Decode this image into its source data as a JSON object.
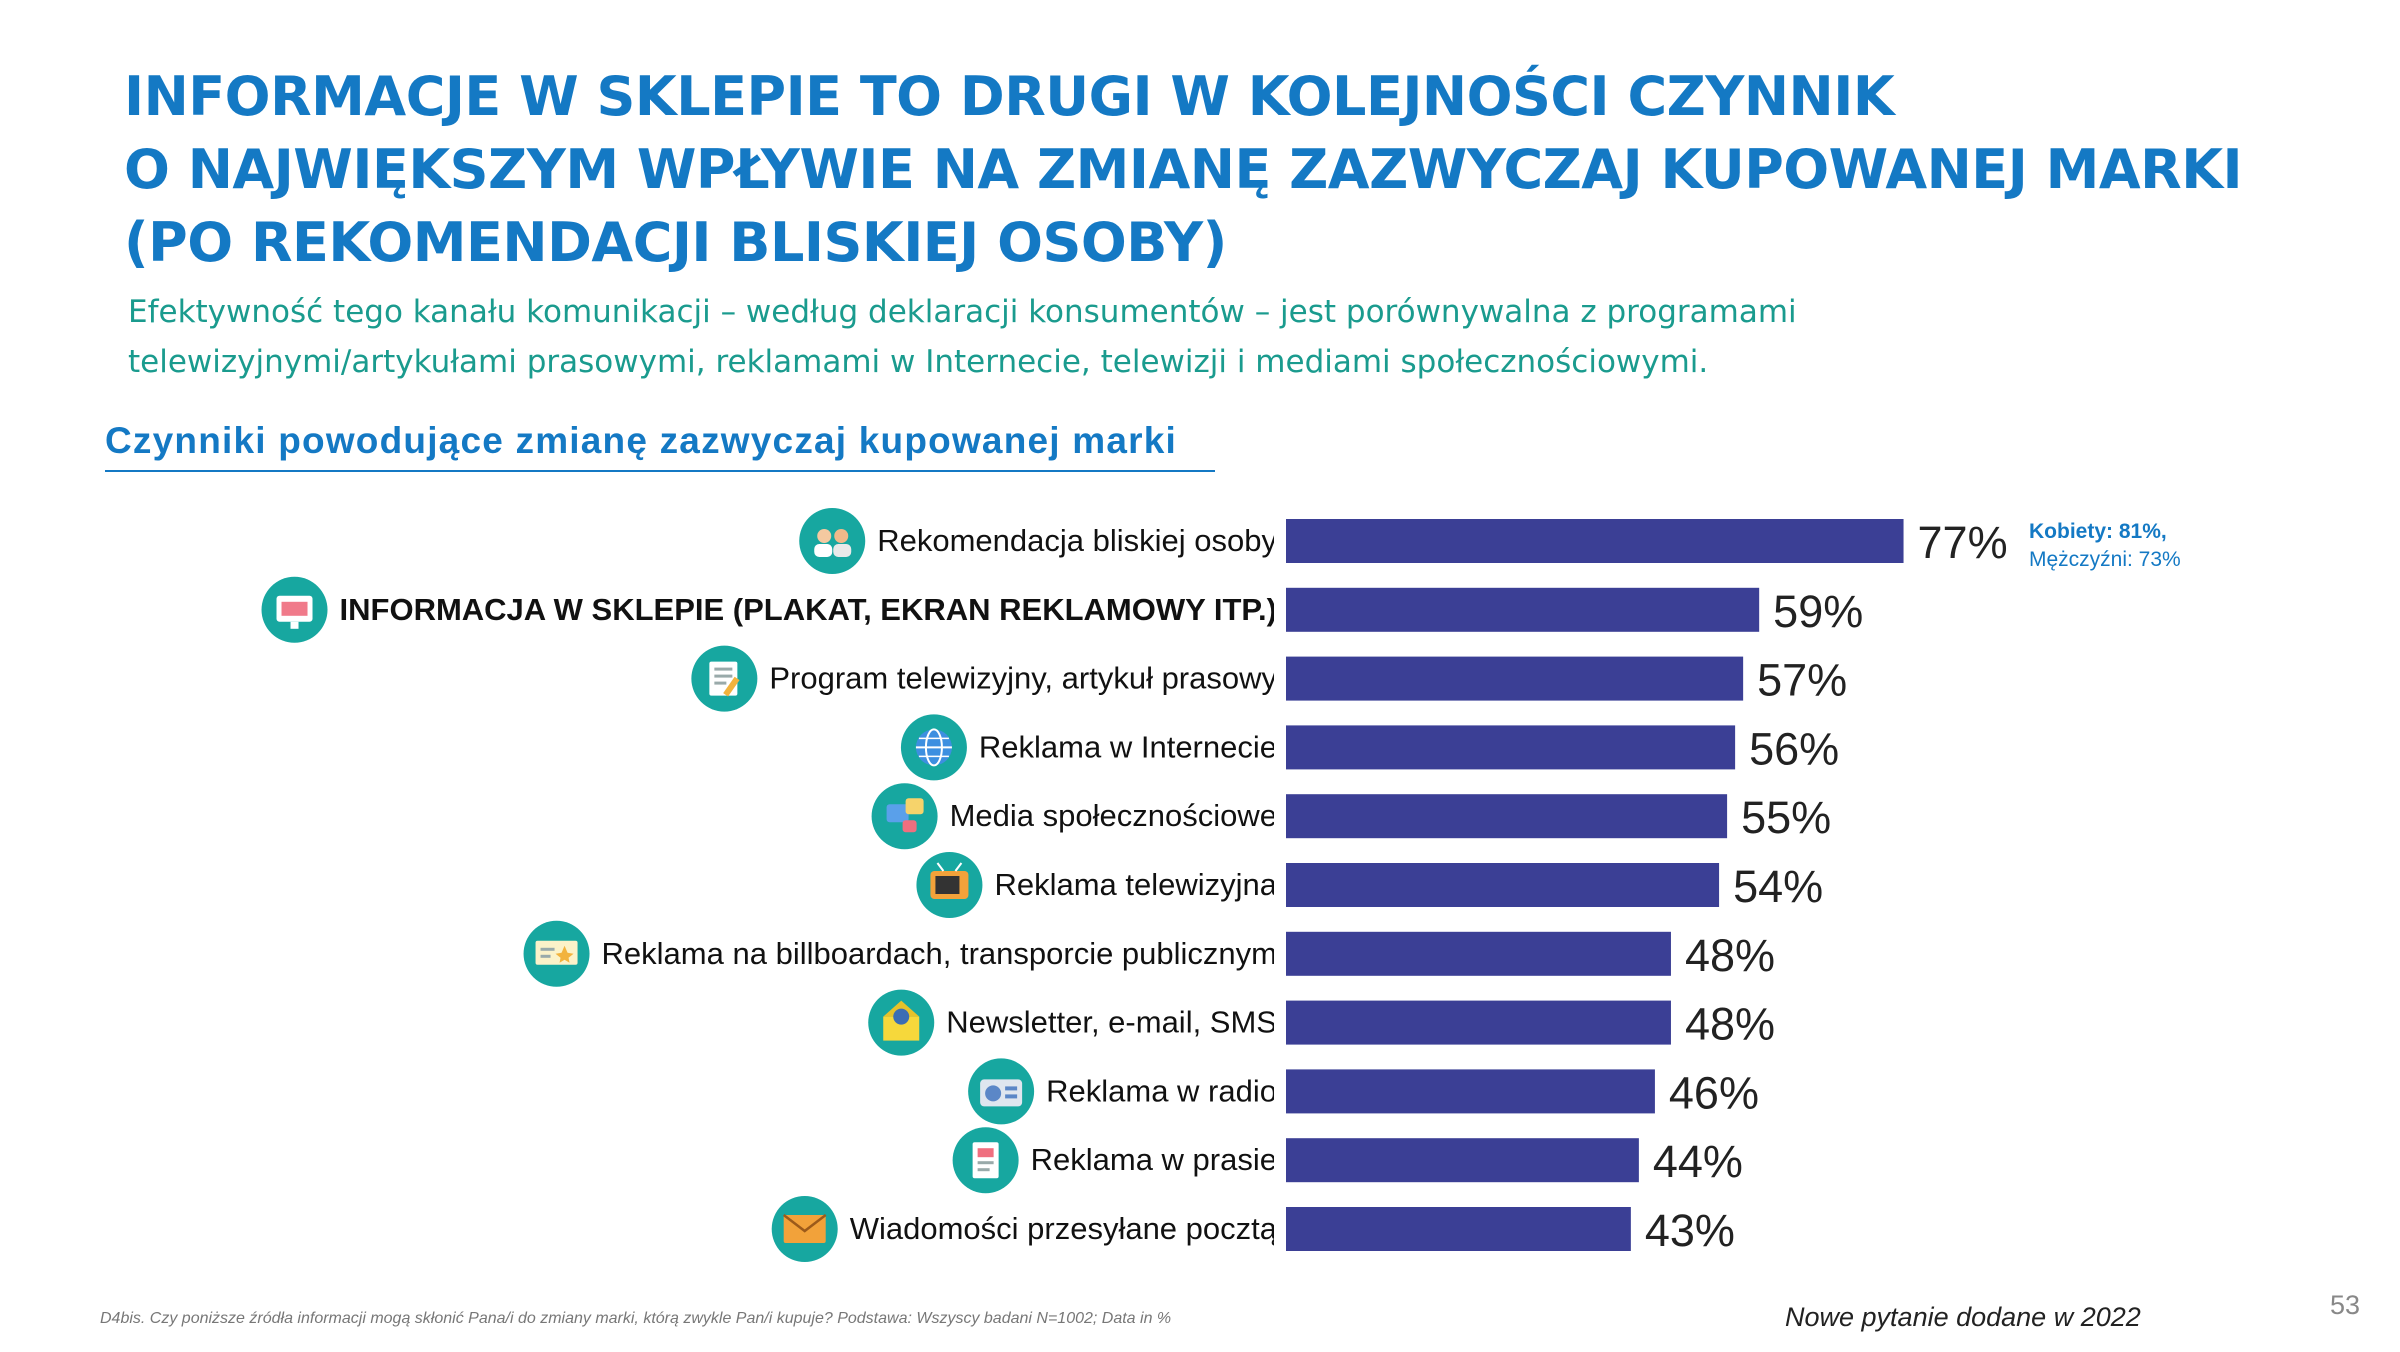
{
  "title": {
    "line1": "INFORMACJE W SKLEPIE TO DRUGI W KOLEJNOŚCI CZYNNIK",
    "line2": "O NAJWIĘKSZYM WPŁYWIE NA ZMIANĘ ZAZWYCZAJ KUPOWANEJ MARKI",
    "line3": "(PO REKOMENDACJI BLISKIEJ OSOBY)"
  },
  "subtitle": {
    "line1": "Efektywność tego kanału komunikacji – według deklaracji konsumentów  – jest porównywalna z programami",
    "line2": "telewizyjnymi/artykułami prasowymi, reklamami w Internecie, telewizji i mediami społecznościowymi."
  },
  "section_title": "Czynniki powodujące zmianę zazwyczaj kupowanej marki",
  "note": {
    "line1": "Kobiety: 81%,",
    "line2": "Mężczyźni: 73%"
  },
  "footer": {
    "question": "D4bis. Czy poniższe źródła informacji mogą skłonić Pana/i do zmiany marki, którą zwykle Pan/i kupuje? Podstawa: Wszyscy badani N=1002; Data in %",
    "new_question": "Nowe pytanie dodane w 2022",
    "page_number": "53"
  },
  "colors": {
    "bar": "#3b3f95",
    "title": "#1479c4",
    "subtitle": "#1a9b8e",
    "icon_circle": "#17a7a0"
  },
  "chart_data": {
    "type": "bar",
    "orientation": "horizontal",
    "title": "Czynniki powodujące zmianę zazwyczaj kupowanej marki",
    "xlabel": "",
    "ylabel": "",
    "unit": "%",
    "xlim": [
      0,
      100
    ],
    "grid": false,
    "categories": [
      "Rekomendacja bliskiej osoby",
      "INFORMACJA W SKLEPIE (PLAKAT, EKRAN REKLAMOWY ITP.)",
      "Program telewizyjny, artykuł prasowy",
      "Reklama w Internecie",
      "Media społecznościowe",
      "Reklama telewizyjna",
      "Reklama na billboardach, transporcie publicznym",
      "Newsletter, e-mail, SMS",
      "Reklama w radio",
      "Reklama w prasie",
      "Wiadomości przesyłane pocztą"
    ],
    "labels": [
      "77%",
      "59%",
      "57%",
      "56%",
      "55%",
      "54%",
      "48%",
      "48%",
      "46%",
      "44%",
      "43%"
    ],
    "values": [
      77,
      59,
      57,
      56,
      55,
      54,
      48,
      48,
      46,
      44,
      43
    ],
    "highlight": [
      false,
      true,
      false,
      false,
      false,
      false,
      false,
      false,
      false,
      false,
      false
    ],
    "icons": [
      "people-icon",
      "store-display-icon",
      "tv-newspaper-icon",
      "globe-icon",
      "social-media-icon",
      "television-icon",
      "billboard-icon",
      "newsletter-icon",
      "radio-icon",
      "newspaper-icon",
      "envelope-icon"
    ]
  }
}
